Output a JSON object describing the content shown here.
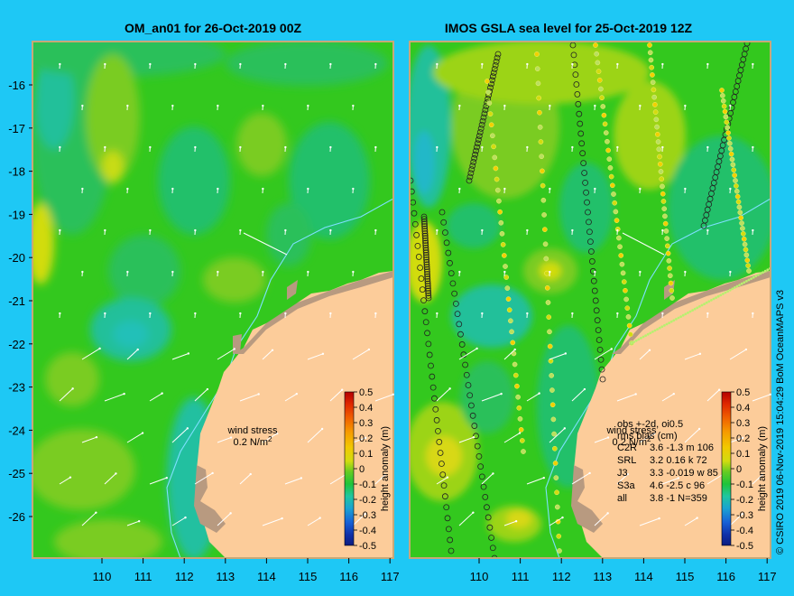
{
  "page": {
    "background": "#1ec8f5"
  },
  "colors": {
    "ocean_base": "#33c81e",
    "land": "#fccc9a",
    "reef": "#b89a80",
    "frame": "#c8a878",
    "arrow": "#ffffff",
    "contour_line": "#7ee0ff"
  },
  "credit": "© CSIRO 2019  06-Nov-2019 15:04:29 BoM OceanMAPS v3",
  "axes": {
    "lat_labels": [
      "-16",
      "-17",
      "-18",
      "-19",
      "-20",
      "-21",
      "-22",
      "-23",
      "-24",
      "-25",
      "-26"
    ],
    "lon_labels": [
      "110",
      "111",
      "112",
      "113",
      "114",
      "115",
      "116",
      "117"
    ]
  },
  "colorbar": {
    "label": "height anomaly (m)",
    "ticks": [
      "0.5",
      "0.4",
      "0.3",
      "0.2",
      "0.1",
      "0",
      "-0.1",
      "-0.2",
      "-0.3",
      "-0.4",
      "-0.5"
    ],
    "colors": [
      "#b40000",
      "#e02800",
      "#f06000",
      "#f69a00",
      "#f2c800",
      "#d2dc10",
      "#66cc22",
      "#1fc43a",
      "#20c6a0",
      "#1aa2d2",
      "#1760d6",
      "#1030a8",
      "#0c1c80"
    ]
  },
  "left_panel": {
    "title": "OM_an01 for 26-Oct-2019 00Z",
    "wind_label": "wind stress",
    "wind_value": "0.2 N/m",
    "wind_exp": "2"
  },
  "right_panel": {
    "title": "IMOS GSLA sea level  for 25-Oct-2019 12Z",
    "wind_label": "wind stress",
    "wind_value": "0.2 N/m",
    "wind_exp": "2",
    "stats_header_1": "obs +-2d, oi0.5",
    "stats_header_2": "rms bias (cm)",
    "stats": [
      {
        "sat": "C2R",
        "values": "3.6 -1.3 m 106"
      },
      {
        "sat": "SRL",
        "values": "3.2 0.16 k 72"
      },
      {
        "sat": "J3",
        "values": "3.3 -0.019 w 85"
      },
      {
        "sat": "S3a",
        "values": "4.6 -2.5 c 96"
      },
      {
        "sat": "all",
        "values": "3.8 -1 N=359"
      }
    ]
  }
}
